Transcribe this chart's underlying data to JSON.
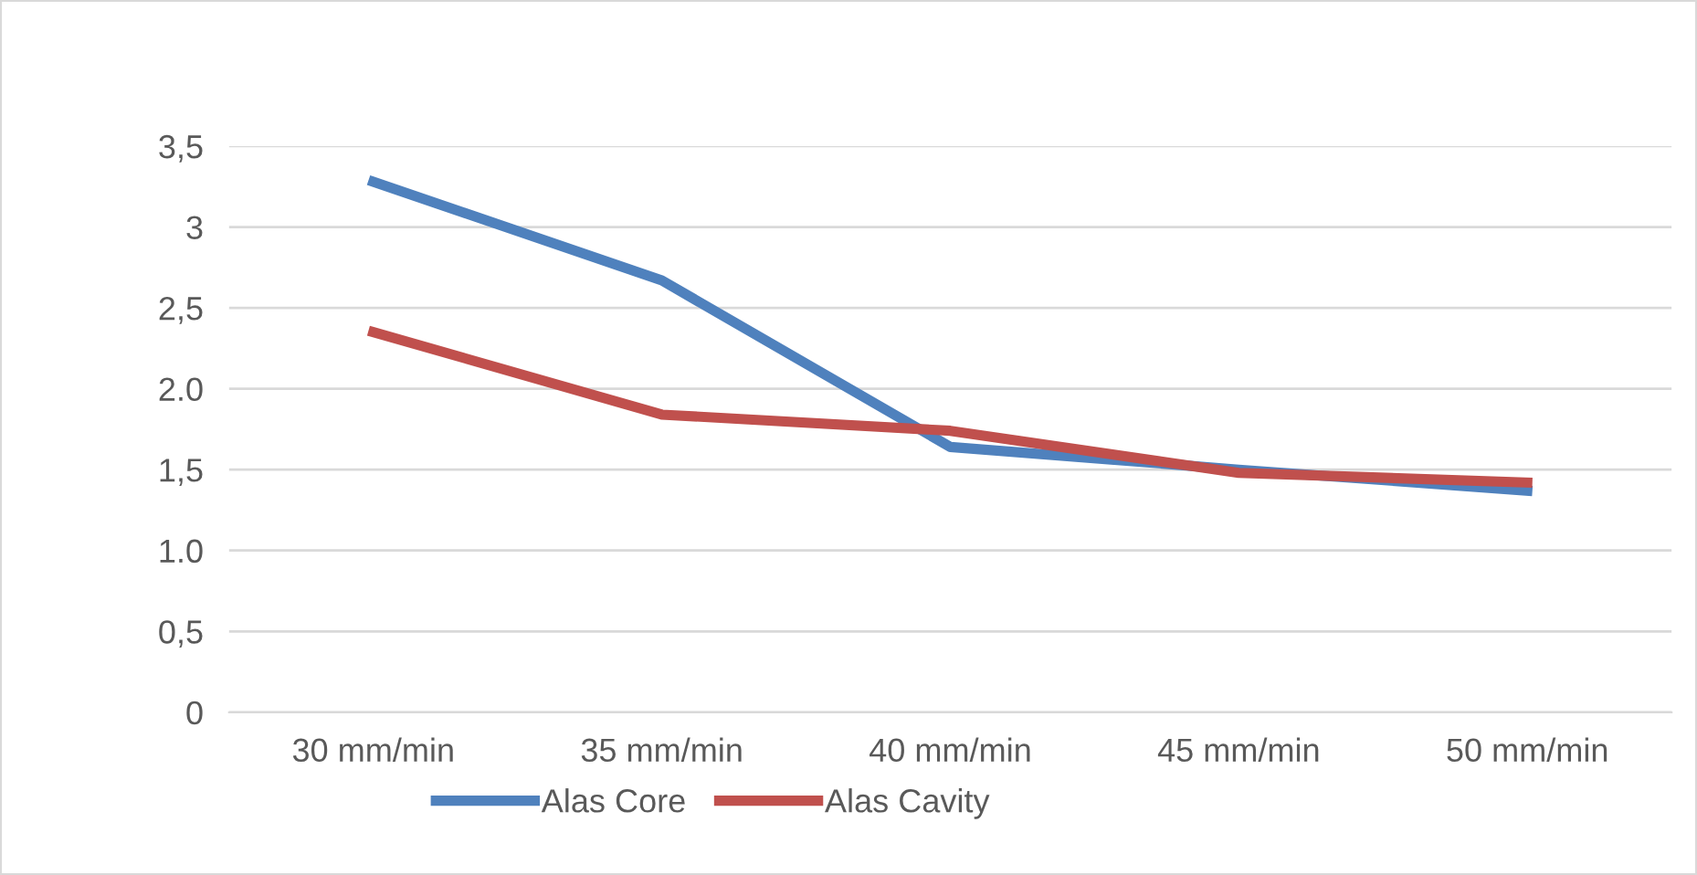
{
  "chart_data": {
    "type": "line",
    "categories": [
      "30 mm/min",
      "35 mm/min",
      "40 mm/min",
      "45 mm/min",
      "50 mm/min"
    ],
    "series": [
      {
        "name": "Alas Core",
        "color": "#4f81bd",
        "values": [
          3.28,
          2.67,
          1.64,
          1.5,
          1.37
        ]
      },
      {
        "name": "Alas Cavity",
        "color": "#c0504d",
        "values": [
          2.35,
          1.84,
          1.74,
          1.48,
          1.42
        ]
      }
    ],
    "ylim": [
      0,
      3.5
    ],
    "yticks": [
      {
        "value": 0,
        "label": "0"
      },
      {
        "value": 0.5,
        "label": "0,5"
      },
      {
        "value": 1.0,
        "label": "1.0"
      },
      {
        "value": 1.5,
        "label": "1,5"
      },
      {
        "value": 2.0,
        "label": "2.0"
      },
      {
        "value": 2.5,
        "label": "2,5"
      },
      {
        "value": 3,
        "label": "3"
      },
      {
        "value": 3.5,
        "label": "3,5"
      }
    ],
    "grid": "y",
    "legend": "bottom",
    "marker": "none",
    "line_style": "solid"
  }
}
